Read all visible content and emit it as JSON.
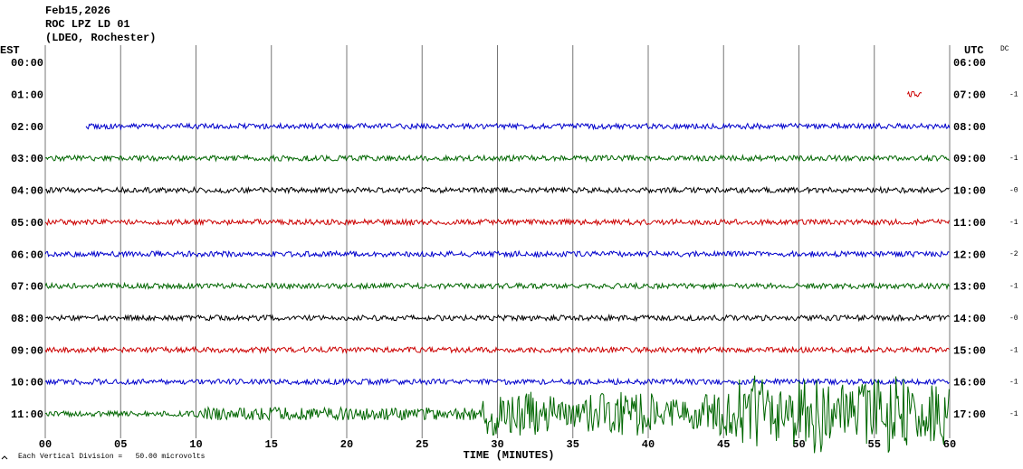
{
  "chart_data": {
    "type": "helicorder",
    "title_lines": [
      "Feb15,2026",
      "ROC LPZ LD 01",
      "(LDEO, Rochester)"
    ],
    "left_zone": "EST",
    "right_zone": "UTC",
    "dc_header": "DC",
    "xlabel": "TIME (MINUTES)",
    "scale_note": "Each Vertical Division =   50.00 microvolts",
    "xlim": [
      0,
      60
    ],
    "xticks": [
      {
        "value": 0,
        "label": "00"
      },
      {
        "value": 5,
        "label": "05"
      },
      10,
      15,
      20,
      25,
      30,
      35,
      40,
      45,
      50,
      55,
      60
    ],
    "rows": [
      {
        "est": "00:00",
        "utc": "06:00",
        "dc": null,
        "color": null,
        "start": null,
        "end": null
      },
      {
        "est": "01:00",
        "utc": "07:00",
        "dc": "-1",
        "color": "#cc0000",
        "start": 57.2,
        "end": 58.2
      },
      {
        "est": "02:00",
        "utc": "08:00",
        "dc": null,
        "color": "#0000cc",
        "start": 2.7,
        "end": 60
      },
      {
        "est": "03:00",
        "utc": "09:00",
        "dc": "-1",
        "color": "#006600",
        "start": 0,
        "end": 60
      },
      {
        "est": "04:00",
        "utc": "10:00",
        "dc": "-0",
        "color": "#000000",
        "start": 0,
        "end": 60
      },
      {
        "est": "05:00",
        "utc": "11:00",
        "dc": "-1",
        "color": "#cc0000",
        "start": 0,
        "end": 60
      },
      {
        "est": "06:00",
        "utc": "12:00",
        "dc": "-2",
        "color": "#0000cc",
        "start": 0,
        "end": 60
      },
      {
        "est": "07:00",
        "utc": "13:00",
        "dc": "-1",
        "color": "#006600",
        "start": 0,
        "end": 60
      },
      {
        "est": "08:00",
        "utc": "14:00",
        "dc": "-0",
        "color": "#000000",
        "start": 0,
        "end": 60
      },
      {
        "est": "09:00",
        "utc": "15:00",
        "dc": "-1",
        "color": "#cc0000",
        "start": 0,
        "end": 60
      },
      {
        "est": "10:00",
        "utc": "16:00",
        "dc": "-1",
        "color": "#0000cc",
        "start": 0,
        "end": 60
      },
      {
        "est": "11:00",
        "utc": "17:00",
        "dc": "-1",
        "color": "#006600",
        "start": 0,
        "end": 60
      }
    ]
  }
}
